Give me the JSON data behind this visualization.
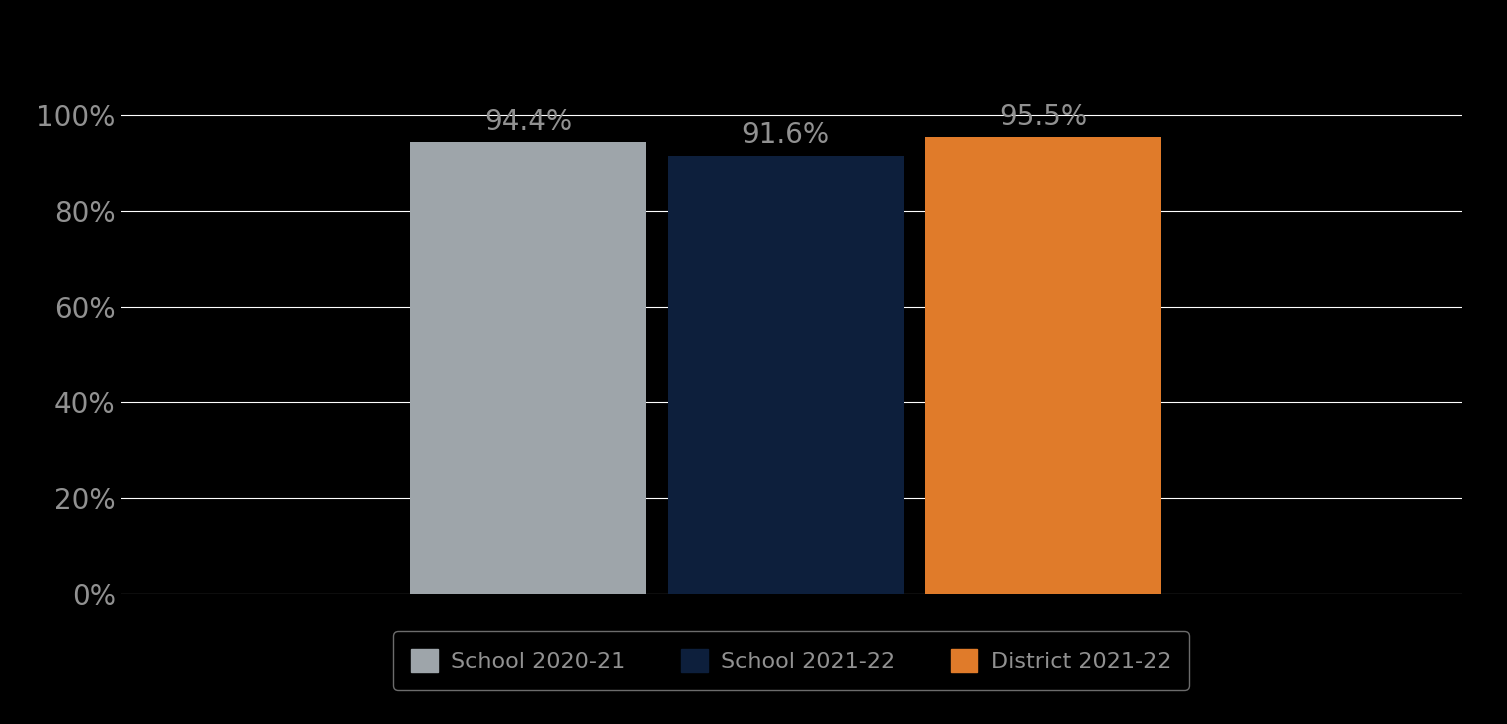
{
  "categories": [
    "School 2020-21",
    "School 2021-22",
    "District 2021-22"
  ],
  "values": [
    0.944,
    0.916,
    0.955
  ],
  "labels": [
    "94.4%",
    "91.6%",
    "95.5%"
  ],
  "bar_colors": [
    "#9EA5AA",
    "#0D1F3C",
    "#E07B2A"
  ],
  "background_color": "#000000",
  "text_color": "#919191",
  "label_color": "#919191",
  "ytick_labels": [
    "0%",
    "20%",
    "40%",
    "60%",
    "80%",
    "100%"
  ],
  "ytick_values": [
    0,
    0.2,
    0.4,
    0.6,
    0.8,
    1.0
  ],
  "ylim": [
    0,
    1.12
  ],
  "grid_color": "#FFFFFF",
  "legend_edge_color": "#888888",
  "bar_width": 0.22,
  "bar_positions": [
    0.38,
    0.62,
    0.86
  ],
  "xlim": [
    0.0,
    1.25
  ],
  "label_fontsize": 20,
  "tick_fontsize": 20,
  "legend_fontsize": 16
}
